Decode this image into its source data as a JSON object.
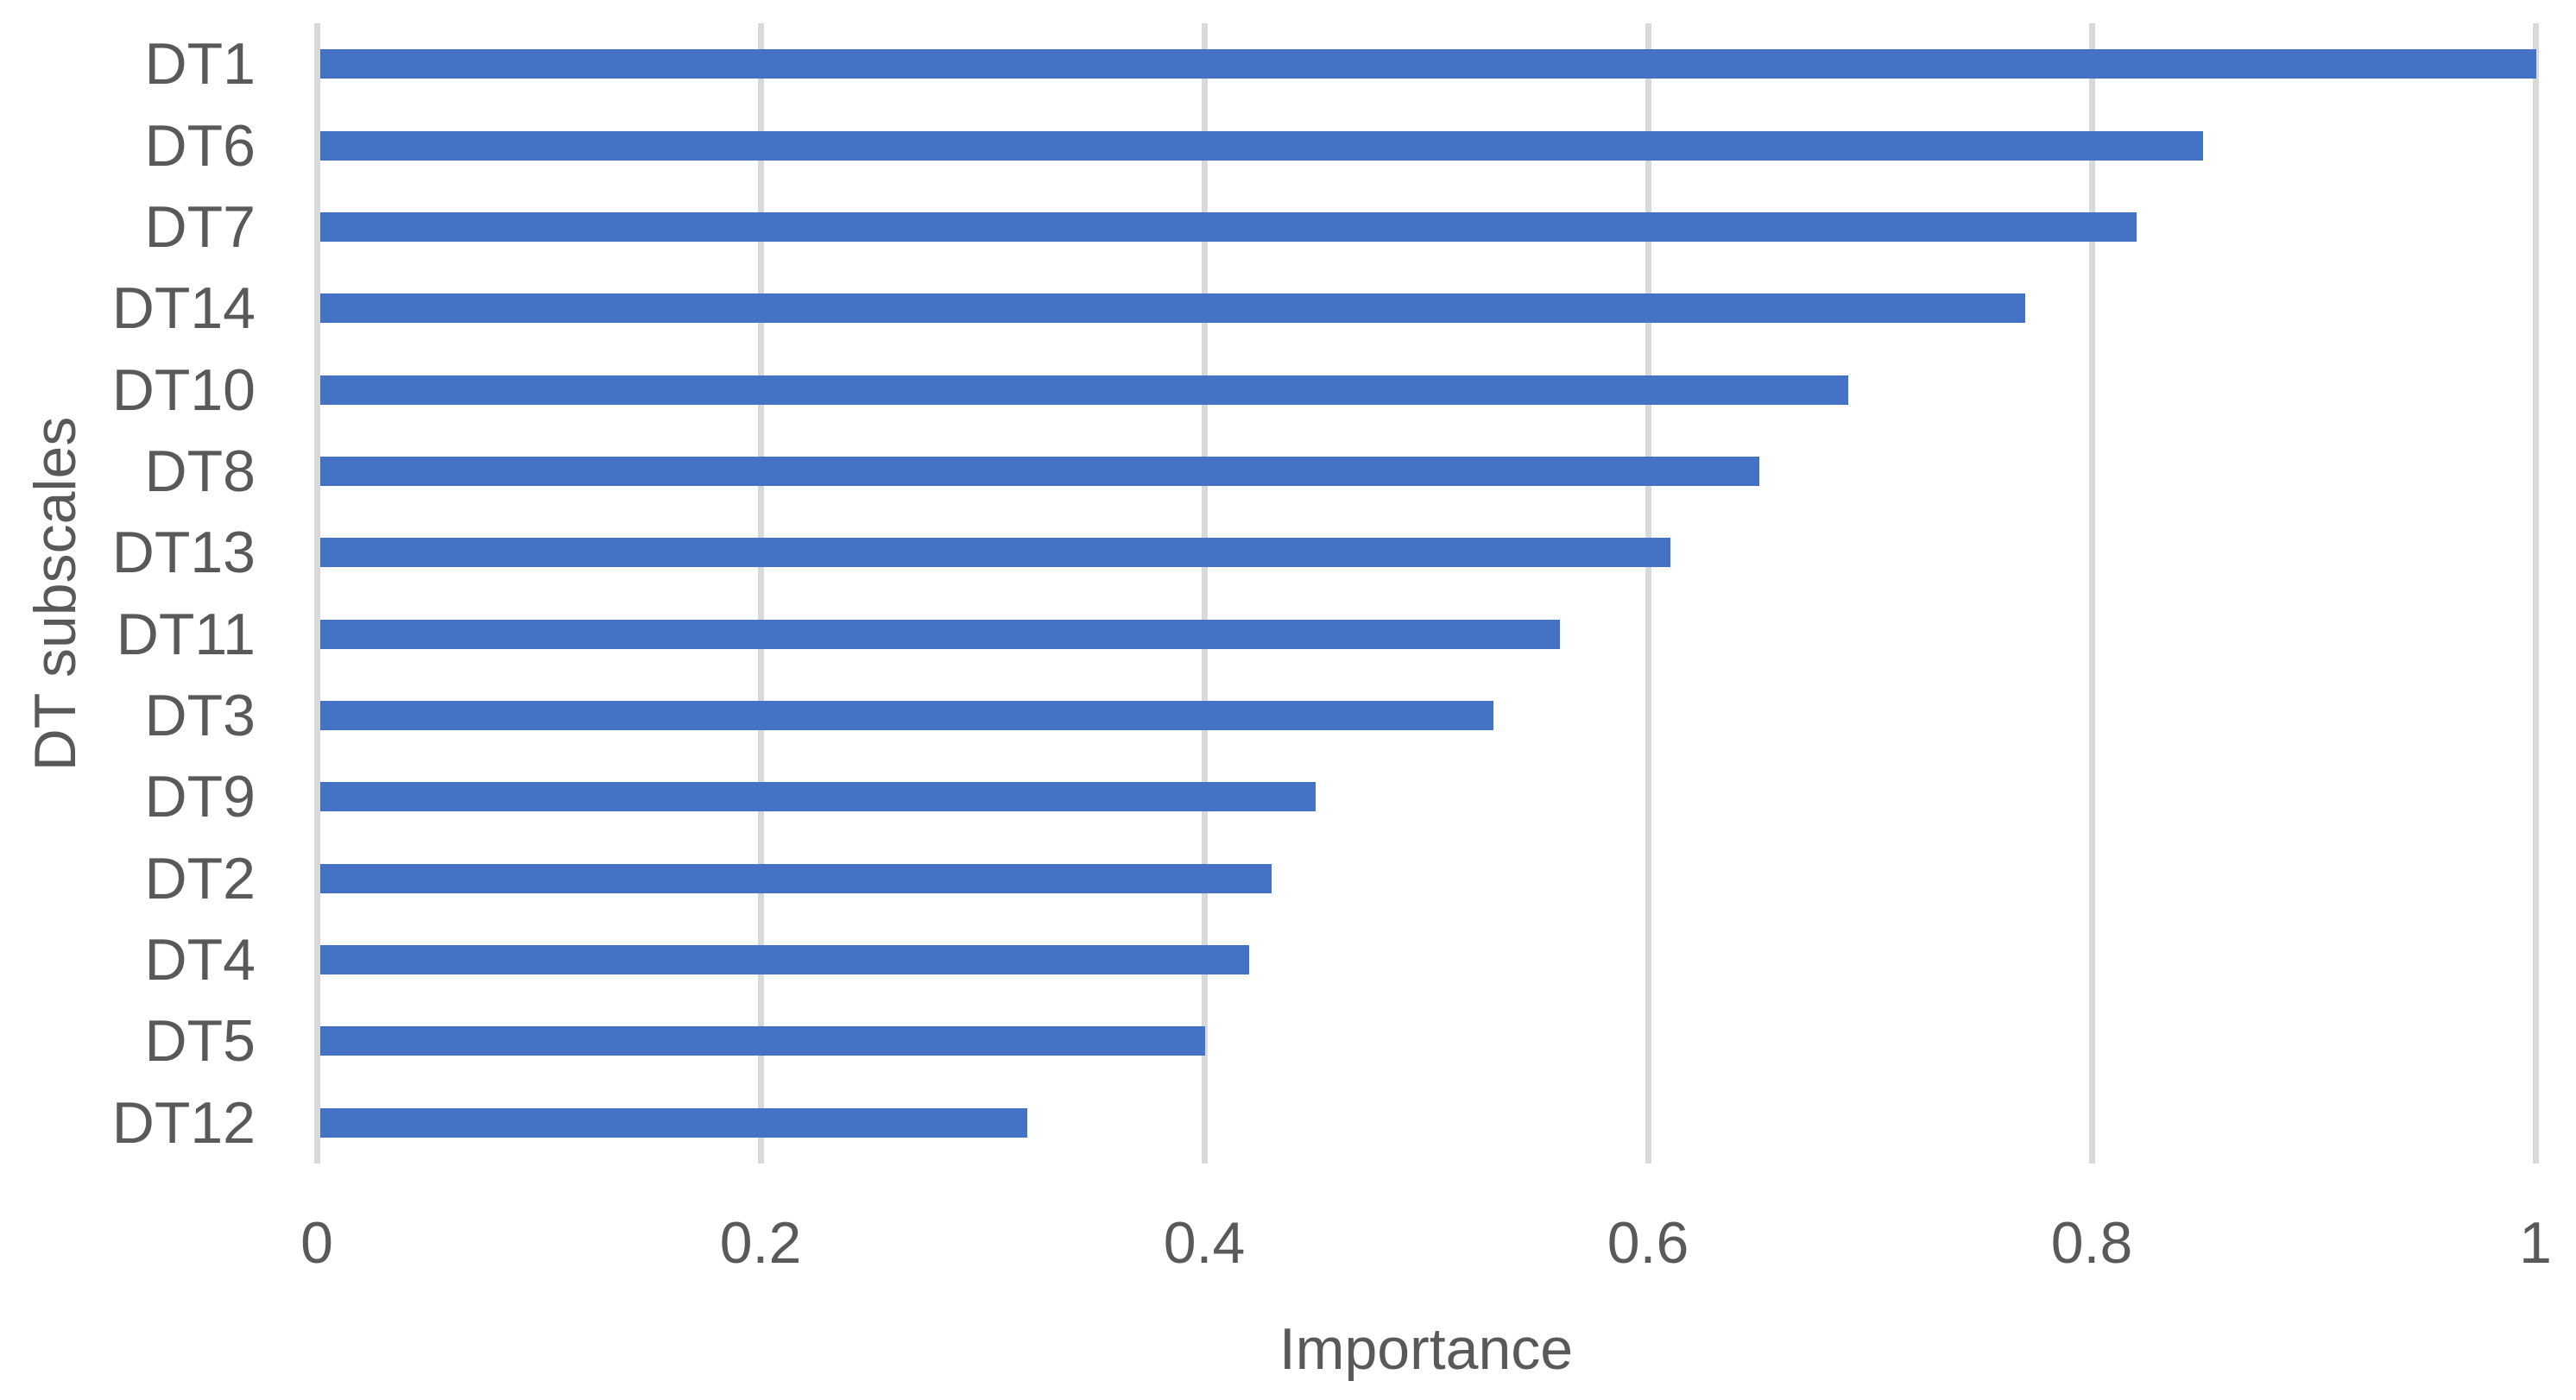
{
  "chart_data": {
    "type": "bar",
    "orientation": "horizontal",
    "title": "",
    "xlabel": "Importance",
    "ylabel": "DT subscales",
    "categories": [
      "DT1",
      "DT6",
      "DT7",
      "DT14",
      "DT10",
      "DT8",
      "DT13",
      "DT11",
      "DT3",
      "DT9",
      "DT2",
      "DT4",
      "DT5",
      "DT12"
    ],
    "values": [
      1.0,
      0.85,
      0.82,
      0.77,
      0.69,
      0.65,
      0.61,
      0.56,
      0.53,
      0.45,
      0.43,
      0.42,
      0.4,
      0.32
    ],
    "xlim": [
      0,
      1
    ],
    "xticks": [
      0,
      0.2,
      0.4,
      0.6,
      0.8,
      1
    ],
    "xtick_labels": [
      "0",
      "0.2",
      "0.4",
      "0.6",
      "0.8",
      "1"
    ],
    "grid": true,
    "legend": false,
    "bar_color": "#4472C4",
    "gridline_color": "#D9D9D9",
    "text_color": "#595959"
  }
}
